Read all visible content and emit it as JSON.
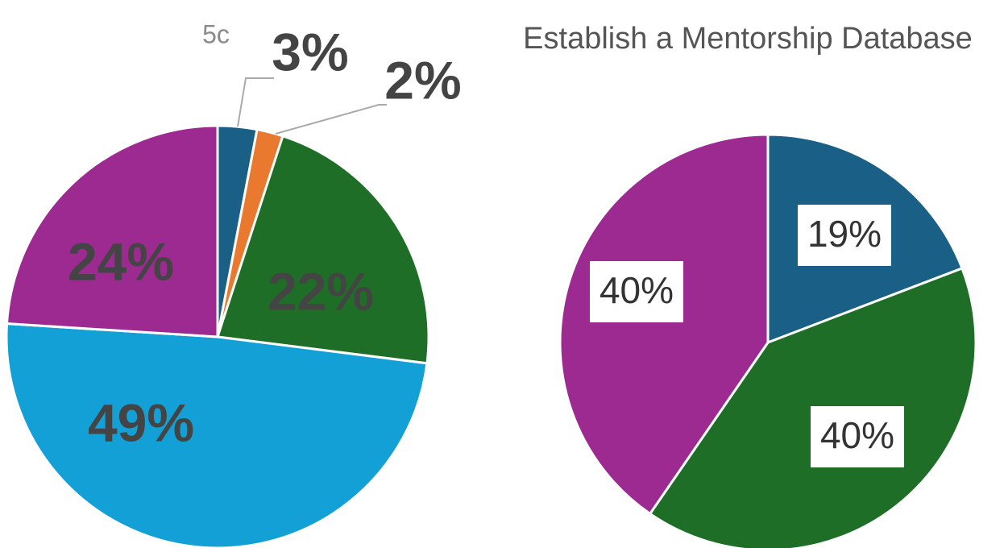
{
  "chart_data": [
    {
      "type": "pie",
      "title": "5c",
      "values": [
        3,
        2,
        22,
        49,
        24
      ],
      "value_labels": [
        "3%",
        "2%",
        "22%",
        "49%",
        "24%"
      ],
      "colors": [
        "#1a5f85",
        "#e8792f",
        "#1e6e27",
        "#12a0d7",
        "#9c2a90"
      ]
    },
    {
      "type": "pie",
      "title": "Establish a Mentorship Database",
      "values": [
        19,
        40,
        40
      ],
      "value_labels": [
        "19%",
        "40%",
        "40%"
      ],
      "colors": [
        "#1a5f85",
        "#1e6e27",
        "#9c2a90"
      ]
    }
  ]
}
